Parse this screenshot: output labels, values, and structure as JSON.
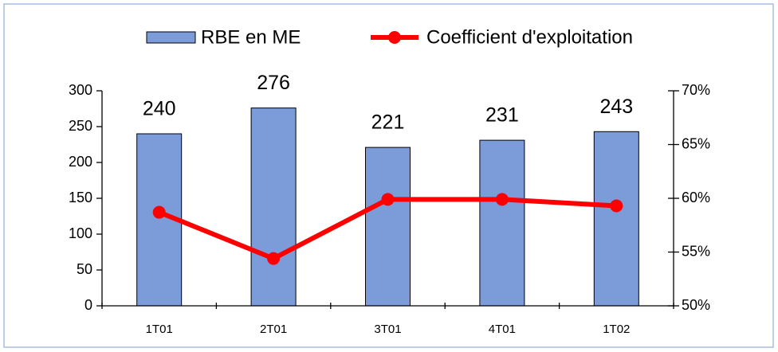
{
  "chart_data": {
    "type": "bar-line",
    "categories": [
      "1T01",
      "2T01",
      "3T01",
      "4T01",
      "1T02"
    ],
    "series": [
      {
        "name": "RBE en ME",
        "color": "#7b9bd9",
        "values": [
          240,
          276,
          221,
          231,
          243
        ]
      },
      {
        "name": "Coefficient d'exploitation",
        "color": "#ff0000",
        "axis": "y2",
        "values": [
          58.7,
          54.4,
          59.9,
          59.9,
          59.3
        ]
      }
    ],
    "ylim": [
      0,
      300
    ],
    "yticks": [
      0,
      50,
      100,
      150,
      200,
      250,
      300
    ],
    "y2lim": [
      50,
      70
    ],
    "y2ticks": [
      {
        "value": 50,
        "label": "50%"
      },
      {
        "value": 55,
        "label": "55%"
      },
      {
        "value": 60,
        "label": "60%"
      },
      {
        "value": 65,
        "label": "65%"
      },
      {
        "value": 70,
        "label": "70%"
      }
    ]
  }
}
